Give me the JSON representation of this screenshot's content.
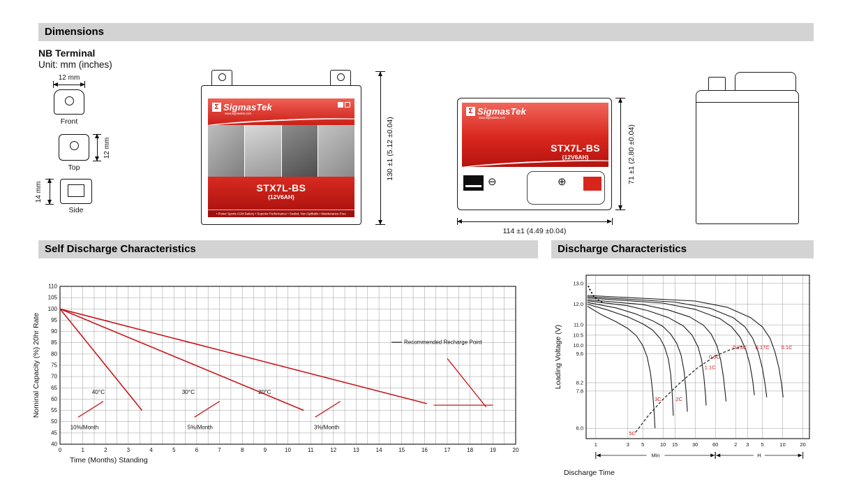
{
  "sections": {
    "dimensions": "Dimensions",
    "self_discharge": "Self Discharge Characteristics",
    "discharge": "Discharge Characteristics"
  },
  "dimensions": {
    "terminal_type": "NB Terminal",
    "unit_note": "Unit: mm (inches)",
    "terminal_views": {
      "front": {
        "label": "Front",
        "width_dim": "12 mm"
      },
      "top": {
        "label": "Top",
        "height_dim": "12 mm"
      },
      "side": {
        "label": "Side",
        "height_dim": "14 mm"
      }
    },
    "front_view": {
      "height_dim": "130 ±1 (5.12 ±0.04)"
    },
    "top_view": {
      "width_dim": "114 ±1 (4.49 ±0.04)",
      "height_dim": "71 ±1 (2.80 ±0.04)",
      "neg_symbol": "⊖",
      "pos_symbol": "⊕"
    },
    "battery_label": {
      "sigma": "Σ",
      "brand": "SigmasTek",
      "brand_url": "www.sigmastek.com",
      "model": "STX7L-BS",
      "spec": "(12V6AH)",
      "footer": "• Power Sports AGM Battery  • Superior Performance  • Sealed, Non-Spillable  • Maintenance-Free"
    }
  },
  "chart_data": [
    {
      "id": "self_discharge",
      "type": "line",
      "title": "Self Discharge Characteristics",
      "xlabel": "Time (Months) Standing",
      "ylabel": "Nominal Capacity (%) 20hr Rate",
      "xlim": [
        0,
        20
      ],
      "ylim": [
        40,
        110
      ],
      "x_tick_step": 1,
      "y_tick_step": 5,
      "x_grid_step": 0.5,
      "y_grid_step": 5,
      "grid": true,
      "line_color": "#c8181c",
      "series": [
        {
          "name": "40°C",
          "rate": "10%/Month",
          "points": [
            [
              0,
              100
            ],
            [
              3.6,
              55
            ]
          ]
        },
        {
          "name": "30°C",
          "rate": "5%/Month",
          "points": [
            [
              0,
              100
            ],
            [
              10.7,
              55
            ]
          ]
        },
        {
          "name": "20°C",
          "rate": "3%/Month",
          "points": [
            [
              0,
              100
            ],
            [
              16.1,
              58
            ]
          ]
        }
      ],
      "extra_segments": [
        {
          "name": "recommended-recharge-line",
          "points": [
            [
              17.0,
              78
            ],
            [
              18.7,
              56.5
            ]
          ],
          "color": "#c8181c"
        },
        {
          "name": "recharge-level-line",
          "points": [
            [
              16.4,
              57.3
            ],
            [
              19.0,
              57.3
            ]
          ],
          "color": "#c8181c"
        },
        {
          "name": "slope-mark-10pct",
          "points": [
            [
              0.8,
              52
            ],
            [
              1.9,
              59
            ]
          ],
          "color": "#c8181c"
        },
        {
          "name": "slope-mark-5pct",
          "points": [
            [
              5.9,
              52
            ],
            [
              7.0,
              59
            ]
          ],
          "color": "#c8181c"
        },
        {
          "name": "slope-mark-3pct",
          "points": [
            [
              11.2,
              52
            ],
            [
              12.3,
              59
            ]
          ],
          "color": "#c8181c"
        },
        {
          "name": "recharge-leader",
          "points": [
            [
              14.55,
              85.2
            ],
            [
              15.0,
              85.2
            ]
          ],
          "color": "#333333"
        }
      ],
      "annotations": [
        {
          "text": "40°C",
          "x": 1.4,
          "y": 63,
          "color": "#111111"
        },
        {
          "text": "30°C",
          "x": 5.35,
          "y": 63,
          "color": "#111111"
        },
        {
          "text": "20°C",
          "x": 8.7,
          "y": 63,
          "color": "#111111"
        },
        {
          "text": "10%/Month",
          "x": 0.45,
          "y": 47.5,
          "color": "#111111",
          "size": 8
        },
        {
          "text": "5%/Month",
          "x": 5.6,
          "y": 47.5,
          "color": "#111111",
          "size": 8
        },
        {
          "text": "3%/Month",
          "x": 11.15,
          "y": 47.5,
          "color": "#111111",
          "size": 8
        },
        {
          "text": "Recommended Recharge Point",
          "x": 15.1,
          "y": 85.2,
          "color": "#111111",
          "size": 8
        }
      ]
    },
    {
      "id": "discharge",
      "type": "line",
      "title": "Discharge Characteristics",
      "xlabel": "Discharge Time",
      "ylabel": "Loading Voltage (V)",
      "x_scale": "log",
      "x_domain_minutes": [
        0.72,
        1500
      ],
      "ylim": [
        5.5,
        13.4
      ],
      "y_ticks": [
        6.0,
        7.8,
        8.2,
        9.6,
        10.0,
        10.5,
        11.0,
        12.0,
        13.0
      ],
      "x_ticks": [
        {
          "t": 1,
          "label": "1"
        },
        {
          "t": 3,
          "label": "3"
        },
        {
          "t": 5,
          "label": "5"
        },
        {
          "t": 10,
          "label": "10"
        },
        {
          "t": 15,
          "label": "15"
        },
        {
          "t": 30,
          "label": "30"
        },
        {
          "t": 60,
          "label": "60"
        },
        {
          "t": 120,
          "label": "2"
        },
        {
          "t": 180,
          "label": "3"
        },
        {
          "t": 300,
          "label": "5"
        },
        {
          "t": 600,
          "label": "10"
        },
        {
          "t": 1200,
          "label": "20"
        }
      ],
      "time_groups": [
        {
          "label": "Min",
          "from": 1,
          "to": 60
        },
        {
          "label": "H",
          "from": 60,
          "to": 1200
        }
      ],
      "curve_color": "#1a1a1a",
      "label_color": "#c8181c",
      "series": [
        {
          "name": "5C",
          "label_at": [
            3.5,
            5.75
          ],
          "points": [
            [
              0.75,
              11.9
            ],
            [
              1.2,
              11.5
            ],
            [
              2,
              11.15
            ],
            [
              3,
              10.82
            ],
            [
              4,
              10.48
            ],
            [
              5,
              10.0
            ],
            [
              5.8,
              9.45
            ],
            [
              6.5,
              8.7
            ],
            [
              7,
              7.8
            ],
            [
              7.4,
              6.7
            ],
            [
              7.6,
              6.0
            ]
          ]
        },
        {
          "name": "3C",
          "label_at": [
            8.4,
            7.4
          ],
          "points": [
            [
              0.75,
              12.0
            ],
            [
              1.5,
              11.72
            ],
            [
              3,
              11.38
            ],
            [
              5,
              11.05
            ],
            [
              7,
              10.75
            ],
            [
              9,
              10.35
            ],
            [
              10.5,
              9.95
            ],
            [
              12,
              9.35
            ],
            [
              13,
              8.6
            ],
            [
              13.8,
              7.5
            ],
            [
              14.2,
              6.6
            ]
          ]
        },
        {
          "name": "2C",
          "label_at": [
            17.3,
            7.4
          ],
          "points": [
            [
              0.75,
              12.08
            ],
            [
              2,
              11.82
            ],
            [
              4,
              11.52
            ],
            [
              7,
              11.2
            ],
            [
              10,
              10.92
            ],
            [
              13,
              10.55
            ],
            [
              16,
              10.1
            ],
            [
              18.5,
              9.55
            ],
            [
              20.5,
              8.8
            ],
            [
              22,
              7.8
            ],
            [
              23,
              6.8
            ]
          ]
        },
        {
          "name": "1.1C",
          "label_at": [
            50,
            8.95
          ],
          "points": [
            [
              0.75,
              12.16
            ],
            [
              3,
              11.92
            ],
            [
              6,
              11.68
            ],
            [
              12,
              11.35
            ],
            [
              20,
              10.95
            ],
            [
              27,
              10.5
            ],
            [
              33,
              9.95
            ],
            [
              37.5,
              9.3
            ],
            [
              40.5,
              8.5
            ],
            [
              42.8,
              7.6
            ],
            [
              43.8,
              7.1
            ]
          ]
        },
        {
          "name": "0.6C",
          "label_at": [
            58,
            9.45
          ],
          "points": [
            [
              0.75,
              12.22
            ],
            [
              5,
              11.98
            ],
            [
              12,
              11.72
            ],
            [
              25,
              11.38
            ],
            [
              40,
              10.98
            ],
            [
              52,
              10.55
            ],
            [
              63,
              10.0
            ],
            [
              72,
              9.3
            ],
            [
              79,
              8.5
            ],
            [
              84,
              7.7
            ],
            [
              86.5,
              7.3
            ]
          ]
        },
        {
          "name": "0.25C",
          "label_at": [
            138,
            9.9
          ],
          "points": [
            [
              0.75,
              12.3
            ],
            [
              10,
              12.05
            ],
            [
              30,
              11.75
            ],
            [
              70,
              11.3
            ],
            [
              105,
              10.9
            ],
            [
              140,
              10.4
            ],
            [
              170,
              9.8
            ],
            [
              195,
              9.1
            ],
            [
              215,
              8.3
            ],
            [
              228,
              7.6
            ]
          ]
        },
        {
          "name": "0.17C",
          "label_at": [
            300,
            9.9
          ],
          "points": [
            [
              0.75,
              12.36
            ],
            [
              15,
              12.1
            ],
            [
              50,
              11.8
            ],
            [
              110,
              11.35
            ],
            [
              165,
              10.9
            ],
            [
              215,
              10.35
            ],
            [
              260,
              9.7
            ],
            [
              300,
              8.9
            ],
            [
              330,
              8.1
            ],
            [
              348,
              7.5
            ]
          ]
        },
        {
          "name": "0.1C",
          "label_at": [
            690,
            9.9
          ],
          "points": [
            [
              0.75,
              12.42
            ],
            [
              30,
              12.15
            ],
            [
              90,
              11.85
            ],
            [
              200,
              11.35
            ],
            [
              300,
              10.9
            ],
            [
              390,
              10.35
            ],
            [
              460,
              9.7
            ],
            [
              530,
              8.9
            ],
            [
              580,
              8.1
            ],
            [
              610,
              7.5
            ]
          ]
        }
      ],
      "discharge_limit_dashed": [
        [
          3.9,
          5.8
        ],
        [
          6,
          6.6
        ],
        [
          10,
          7.4
        ],
        [
          18,
          8.2
        ],
        [
          32,
          8.9
        ],
        [
          60,
          9.5
        ],
        [
          100,
          9.8
        ],
        [
          150,
          9.95
        ]
      ],
      "initial_voltage_markers": [
        [
          0.78,
          12.85
        ],
        [
          0.82,
          12.7
        ],
        [
          0.87,
          12.55
        ],
        [
          0.93,
          12.4
        ],
        [
          1.0,
          12.28
        ],
        [
          1.1,
          12.18
        ],
        [
          1.22,
          12.1
        ]
      ]
    }
  ]
}
